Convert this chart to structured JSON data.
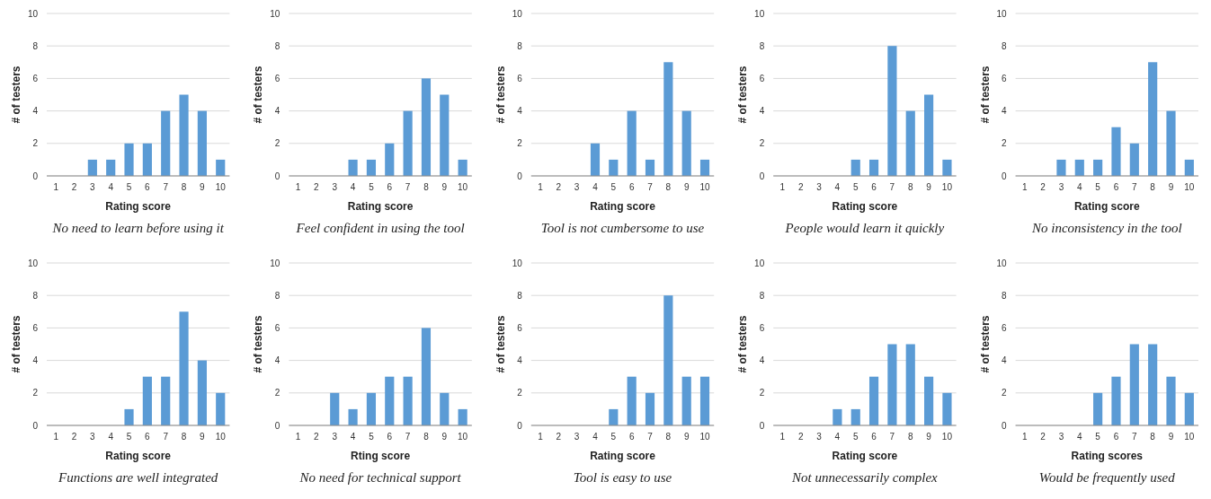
{
  "chart_data": [
    {
      "type": "bar",
      "title": "No need to learn before using it",
      "xlabel": "Rating score",
      "ylabel": "# of testers",
      "categories": [
        "1",
        "2",
        "3",
        "4",
        "5",
        "6",
        "7",
        "8",
        "9",
        "10"
      ],
      "values": [
        0,
        0,
        1,
        1,
        2,
        2,
        4,
        5,
        4,
        1
      ],
      "color": "#5b9bd5",
      "ylim": [
        0,
        10
      ],
      "yticks": [
        0,
        2,
        4,
        6,
        8,
        10
      ],
      "grid": "y"
    },
    {
      "type": "bar",
      "title": "Feel confident in using the tool",
      "xlabel": "Rating score",
      "ylabel": "# of testers",
      "categories": [
        "1",
        "2",
        "3",
        "4",
        "5",
        "6",
        "7",
        "8",
        "9",
        "10"
      ],
      "values": [
        0,
        0,
        0,
        1,
        1,
        2,
        4,
        6,
        5,
        1
      ],
      "color": "#5b9bd5",
      "ylim": [
        0,
        10
      ],
      "yticks": [
        0,
        2,
        4,
        6,
        8,
        10
      ],
      "grid": "y"
    },
    {
      "type": "bar",
      "title": "Tool is not cumbersome to use",
      "xlabel": "Rating score",
      "ylabel": "# of testers",
      "categories": [
        "1",
        "2",
        "3",
        "4",
        "5",
        "6",
        "7",
        "8",
        "9",
        "10"
      ],
      "values": [
        0,
        0,
        0,
        2,
        1,
        4,
        1,
        7,
        4,
        1
      ],
      "color": "#5b9bd5",
      "ylim": [
        0,
        10
      ],
      "yticks": [
        0,
        2,
        4,
        6,
        8,
        10
      ],
      "grid": "y"
    },
    {
      "type": "bar",
      "title": "People would learn it quickly",
      "xlabel": "Rating score",
      "ylabel": "# of testers",
      "categories": [
        "1",
        "2",
        "3",
        "4",
        "5",
        "6",
        "7",
        "8",
        "9",
        "10"
      ],
      "values": [
        0,
        0,
        0,
        0,
        1,
        1,
        8,
        4,
        5,
        1
      ],
      "color": "#5b9bd5",
      "ylim": [
        0,
        10
      ],
      "yticks": [
        0,
        2,
        4,
        6,
        8,
        10
      ],
      "grid": "y"
    },
    {
      "type": "bar",
      "title": "No inconsistency in the tool",
      "xlabel": "Rating score",
      "ylabel": "# of testers",
      "categories": [
        "1",
        "2",
        "3",
        "4",
        "5",
        "6",
        "7",
        "8",
        "9",
        "10"
      ],
      "values": [
        0,
        0,
        1,
        1,
        1,
        3,
        2,
        7,
        4,
        1
      ],
      "color": "#5b9bd5",
      "ylim": [
        0,
        10
      ],
      "yticks": [
        0,
        2,
        4,
        6,
        8,
        10
      ],
      "grid": "y"
    },
    {
      "type": "bar",
      "title": "Functions are well integrated",
      "xlabel": "Rating score",
      "ylabel": "# of testers",
      "categories": [
        "1",
        "2",
        "3",
        "4",
        "5",
        "6",
        "7",
        "8",
        "9",
        "10"
      ],
      "values": [
        0,
        0,
        0,
        0,
        1,
        3,
        3,
        7,
        4,
        2
      ],
      "color": "#5b9bd5",
      "ylim": [
        0,
        10
      ],
      "yticks": [
        0,
        2,
        4,
        6,
        8,
        10
      ],
      "grid": "y"
    },
    {
      "type": "bar",
      "title": "No need for technical support",
      "xlabel": "Rting score",
      "ylabel": "# of testers",
      "categories": [
        "1",
        "2",
        "3",
        "4",
        "5",
        "6",
        "7",
        "8",
        "9",
        "10"
      ],
      "values": [
        0,
        0,
        2,
        1,
        2,
        3,
        3,
        6,
        2,
        1
      ],
      "color": "#5b9bd5",
      "ylim": [
        0,
        10
      ],
      "yticks": [
        0,
        2,
        4,
        6,
        8,
        10
      ],
      "grid": "y"
    },
    {
      "type": "bar",
      "title": "Tool is easy to use",
      "xlabel": "Rating score",
      "ylabel": "# of testers",
      "categories": [
        "1",
        "2",
        "3",
        "4",
        "5",
        "6",
        "7",
        "8",
        "9",
        "10"
      ],
      "values": [
        0,
        0,
        0,
        0,
        1,
        3,
        2,
        8,
        3,
        3
      ],
      "color": "#5b9bd5",
      "ylim": [
        0,
        10
      ],
      "yticks": [
        0,
        2,
        4,
        6,
        8,
        10
      ],
      "grid": "y"
    },
    {
      "type": "bar",
      "title": "Not unnecessarily complex",
      "xlabel": "Rating score",
      "ylabel": "# of testers",
      "categories": [
        "1",
        "2",
        "3",
        "4",
        "5",
        "6",
        "7",
        "8",
        "9",
        "10"
      ],
      "values": [
        0,
        0,
        0,
        1,
        1,
        3,
        5,
        5,
        3,
        2
      ],
      "color": "#5b9bd5",
      "ylim": [
        0,
        10
      ],
      "yticks": [
        0,
        2,
        4,
        6,
        8,
        10
      ],
      "grid": "y"
    },
    {
      "type": "bar",
      "title": "Would be frequently used",
      "xlabel": "Rating scores",
      "ylabel": "# of testers",
      "categories": [
        "1",
        "2",
        "3",
        "4",
        "5",
        "6",
        "7",
        "8",
        "9",
        "10"
      ],
      "values": [
        0,
        0,
        0,
        0,
        2,
        3,
        5,
        5,
        3,
        2
      ],
      "color": "#5b9bd5",
      "ylim": [
        0,
        10
      ],
      "yticks": [
        0,
        2,
        4,
        6,
        8,
        10
      ],
      "grid": "y"
    }
  ]
}
